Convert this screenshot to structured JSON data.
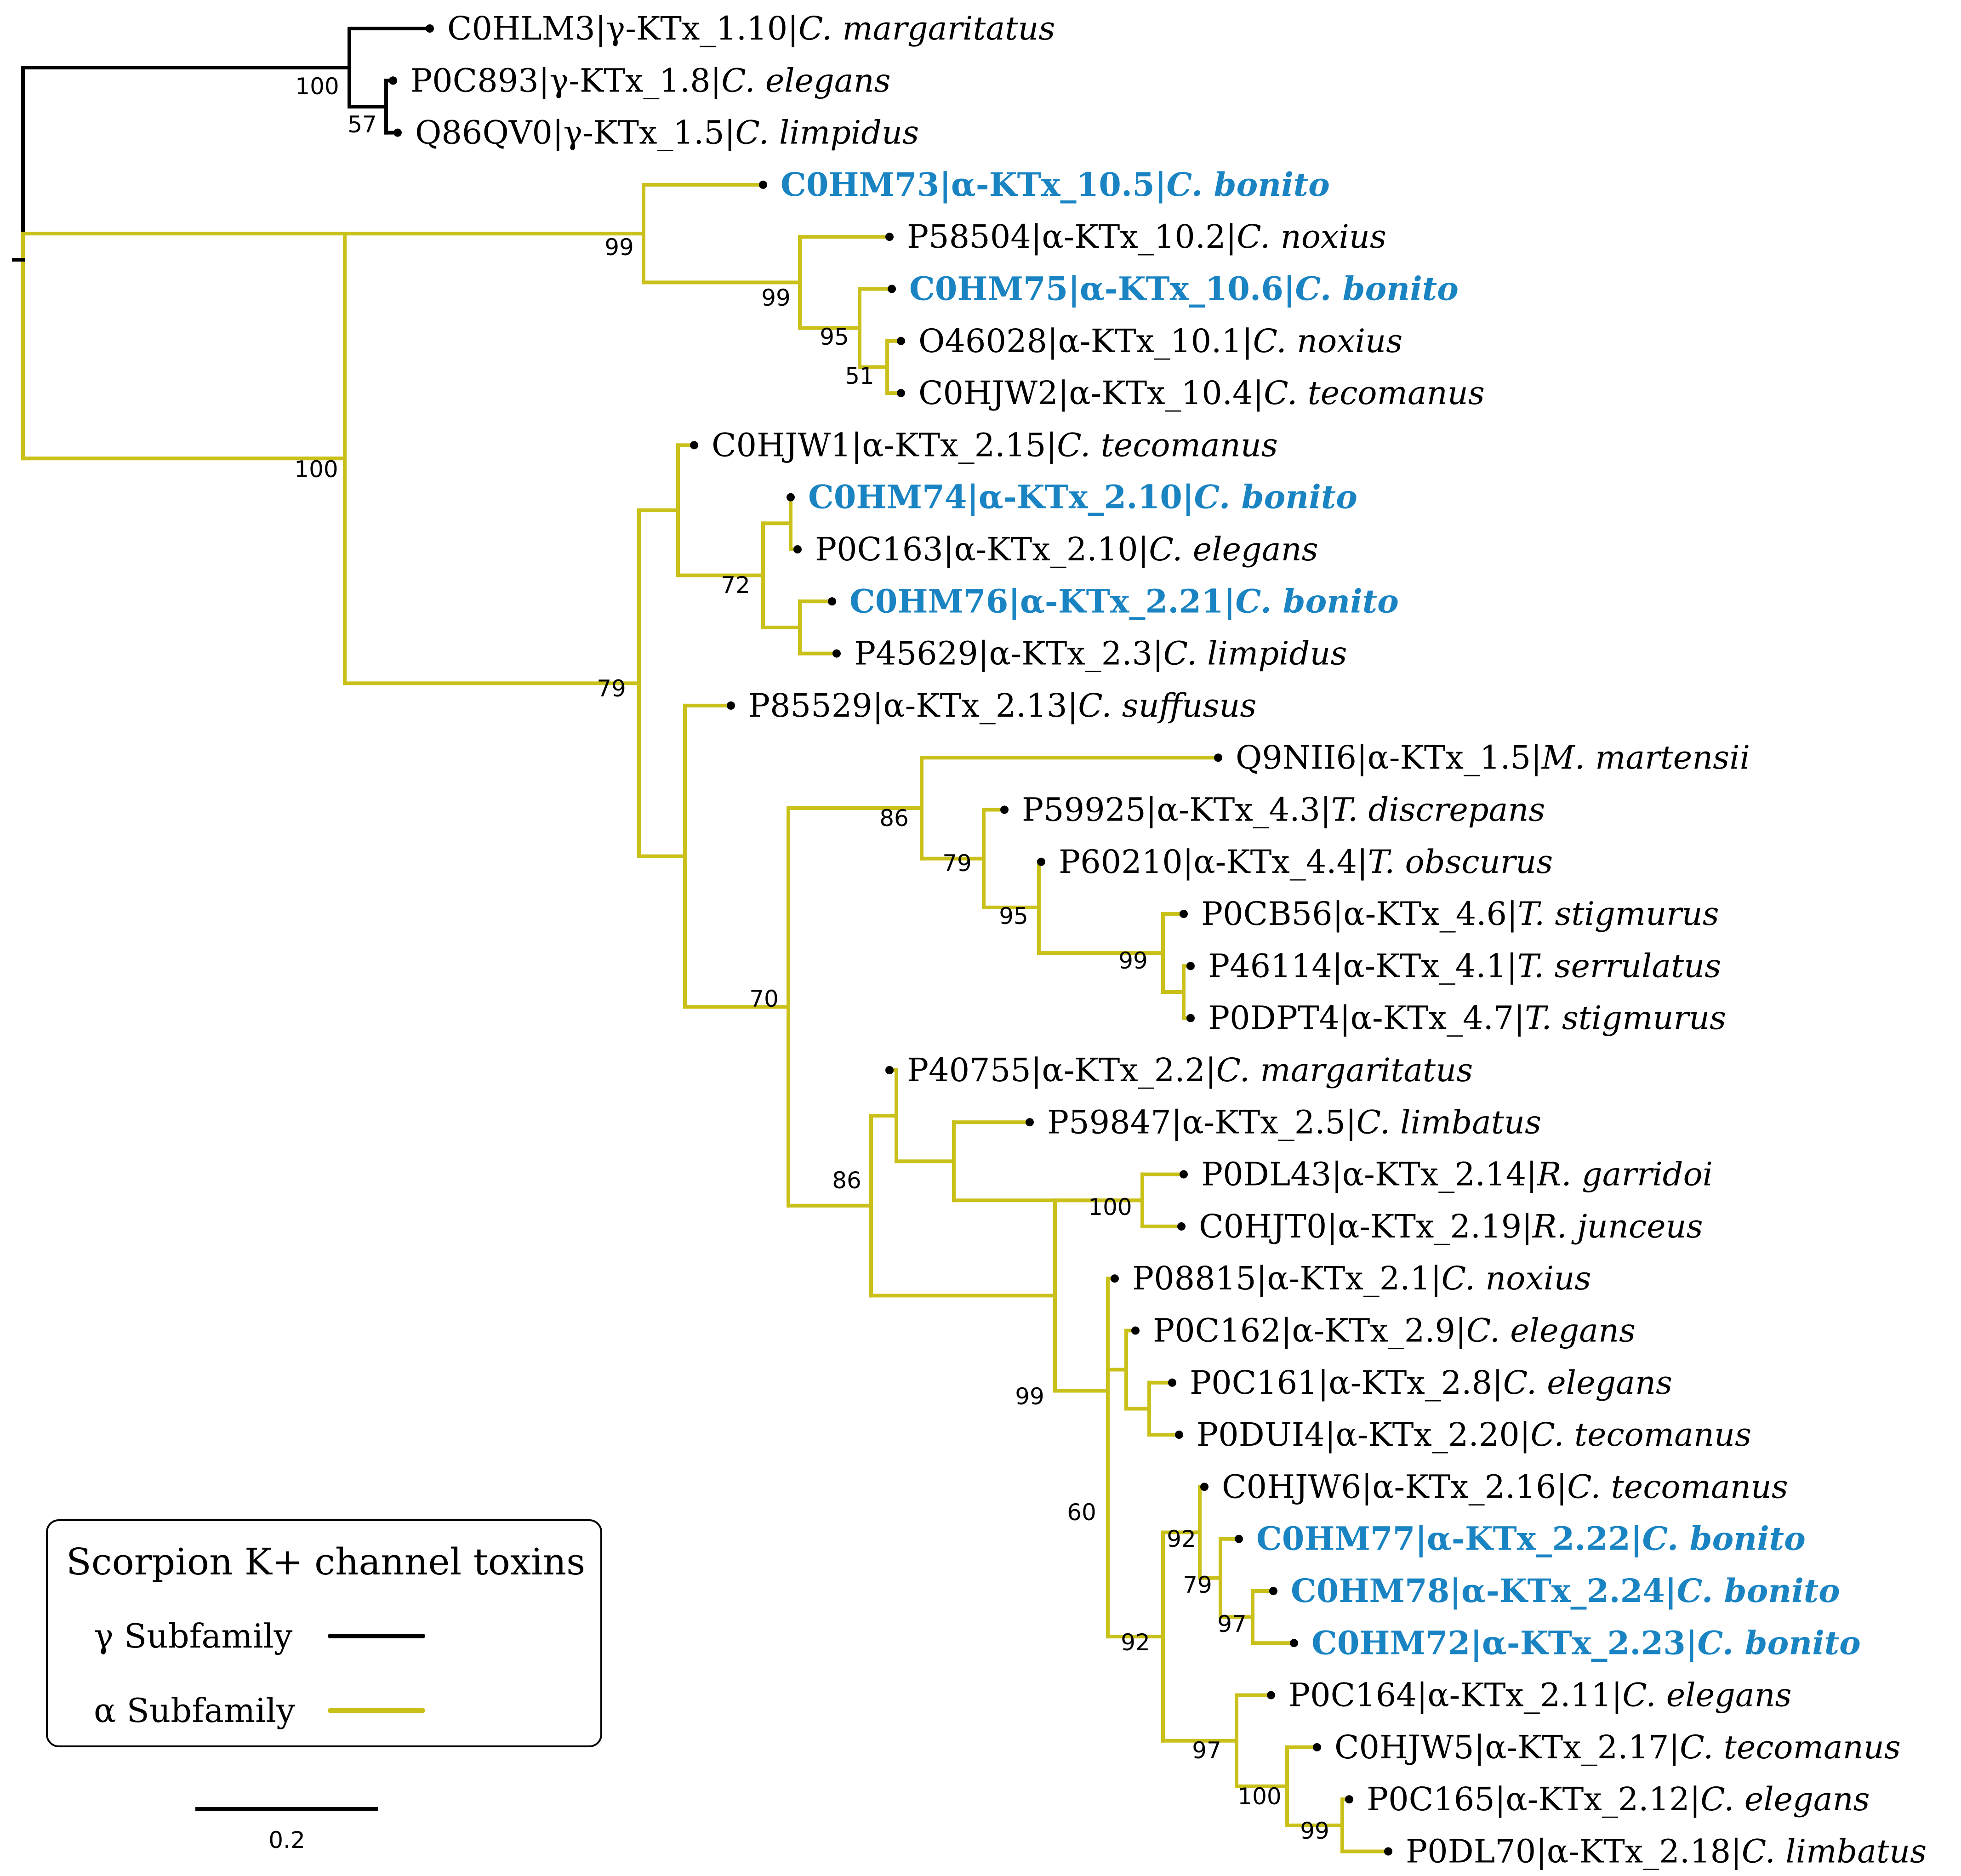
{
  "colors": {
    "gamma": "#000000",
    "alpha": "#c9c11a",
    "highlight": "#1a84c3",
    "text": "#000000"
  },
  "tree": {
    "gamma": {
      "root_support": "100",
      "inner_support": "57",
      "taxa": [
        {
          "id": "C0HLM3",
          "name": "γ-KTx_1.10",
          "species": "C. margaritatus"
        },
        {
          "id": "P0C893",
          "name": "γ-KTx_1.8",
          "species": "C. elegans"
        },
        {
          "id": "Q86QV0",
          "name": "γ-KTx_1.5",
          "species": "C. limpidus"
        }
      ]
    },
    "alpha_root_support": "100",
    "alpha_taxa": [
      {
        "id": "C0HM73",
        "name": "α-KTx_10.5",
        "species": "C. bonito",
        "highlight": true
      },
      {
        "id": "P58504",
        "name": "α-KTx_10.2",
        "species": "C. noxius",
        "highlight": false
      },
      {
        "id": "C0HM75",
        "name": "α-KTx_10.6",
        "species": "C. bonito",
        "highlight": true
      },
      {
        "id": "O46028",
        "name": "α-KTx_10.1",
        "species": "C. noxius",
        "highlight": false
      },
      {
        "id": "C0HJW2",
        "name": "α-KTx_10.4",
        "species": "C. tecomanus",
        "highlight": false
      },
      {
        "id": "C0HJW1",
        "name": "α-KTx_2.15",
        "species": "C. tecomanus",
        "highlight": false
      },
      {
        "id": "C0HM74",
        "name": "α-KTx_2.10",
        "species": "C. bonito",
        "highlight": true
      },
      {
        "id": "P0C163",
        "name": "α-KTx_2.10",
        "species": "C. elegans",
        "highlight": false
      },
      {
        "id": "C0HM76",
        "name": "α-KTx_2.21",
        "species": "C. bonito",
        "highlight": true
      },
      {
        "id": "P45629",
        "name": "α-KTx_2.3",
        "species": "C. limpidus",
        "highlight": false
      },
      {
        "id": "P85529",
        "name": "α-KTx_2.13",
        "species": "C. suffusus",
        "highlight": false
      },
      {
        "id": "Q9NII6",
        "name": "α-KTx_1.5",
        "species": "M. martensii",
        "highlight": false
      },
      {
        "id": "P59925",
        "name": "α-KTx_4.3",
        "species": "T. discrepans",
        "highlight": false
      },
      {
        "id": "P60210",
        "name": "α-KTx_4.4",
        "species": "T. obscurus",
        "highlight": false
      },
      {
        "id": "P0CB56",
        "name": "α-KTx_4.6",
        "species": "T. stigmurus",
        "highlight": false
      },
      {
        "id": "P46114",
        "name": "α-KTx_4.1",
        "species": "T. serrulatus",
        "highlight": false
      },
      {
        "id": "P0DPT4",
        "name": "α-KTx_4.7",
        "species": "T. stigmurus",
        "highlight": false
      },
      {
        "id": "P40755",
        "name": "α-KTx_2.2",
        "species": "C. margaritatus",
        "highlight": false
      },
      {
        "id": "P59847",
        "name": "α-KTx_2.5",
        "species": "C. limbatus",
        "highlight": false
      },
      {
        "id": "P0DL43",
        "name": "α-KTx_2.14",
        "species": "R. garridoi",
        "highlight": false
      },
      {
        "id": "C0HJT0",
        "name": "α-KTx_2.19",
        "species": "R. junceus",
        "highlight": false
      },
      {
        "id": "P08815",
        "name": "α-KTx_2.1",
        "species": "C. noxius",
        "highlight": false
      },
      {
        "id": "P0C162",
        "name": "α-KTx_2.9",
        "species": "C. elegans",
        "highlight": false
      },
      {
        "id": "P0C161",
        "name": "α-KTx_2.8",
        "species": "C. elegans",
        "highlight": false
      },
      {
        "id": "P0DUI4",
        "name": "α-KTx_2.20",
        "species": "C. tecomanus",
        "highlight": false
      },
      {
        "id": "C0HJW6",
        "name": "α-KTx_2.16",
        "species": "C. tecomanus",
        "highlight": false
      },
      {
        "id": "C0HM77",
        "name": "α-KTx_2.22",
        "species": "C. bonito",
        "highlight": true
      },
      {
        "id": "C0HM78",
        "name": "α-KTx_2.24",
        "species": "C. bonito",
        "highlight": true
      },
      {
        "id": "C0HM72",
        "name": "α-KTx_2.23",
        "species": "C. bonito",
        "highlight": true
      },
      {
        "id": "P0C164",
        "name": "α-KTx_2.11",
        "species": "C. elegans",
        "highlight": false
      },
      {
        "id": "C0HJW5",
        "name": "α-KTx_2.17",
        "species": "C. tecomanus",
        "highlight": false
      },
      {
        "id": "P0C165",
        "name": "α-KTx_2.12",
        "species": "C. elegans",
        "highlight": false
      },
      {
        "id": "P0DL70",
        "name": "α-KTx_2.18",
        "species": "C. limbatus",
        "highlight": false
      }
    ],
    "support_values": [
      "99",
      "99",
      "95",
      "51",
      "79",
      "72",
      "86",
      "79",
      "95",
      "99",
      "70",
      "86",
      "100",
      "99",
      "60",
      "92",
      "79",
      "97",
      "92",
      "97",
      "100",
      "99"
    ],
    "scale_bar_label": "0.2"
  },
  "legend": {
    "title": "Scorpion K+ channel toxins",
    "items": [
      {
        "label": "γ Subfamily",
        "color_key": "gamma"
      },
      {
        "label": "α Subfamily",
        "color_key": "alpha"
      }
    ]
  }
}
